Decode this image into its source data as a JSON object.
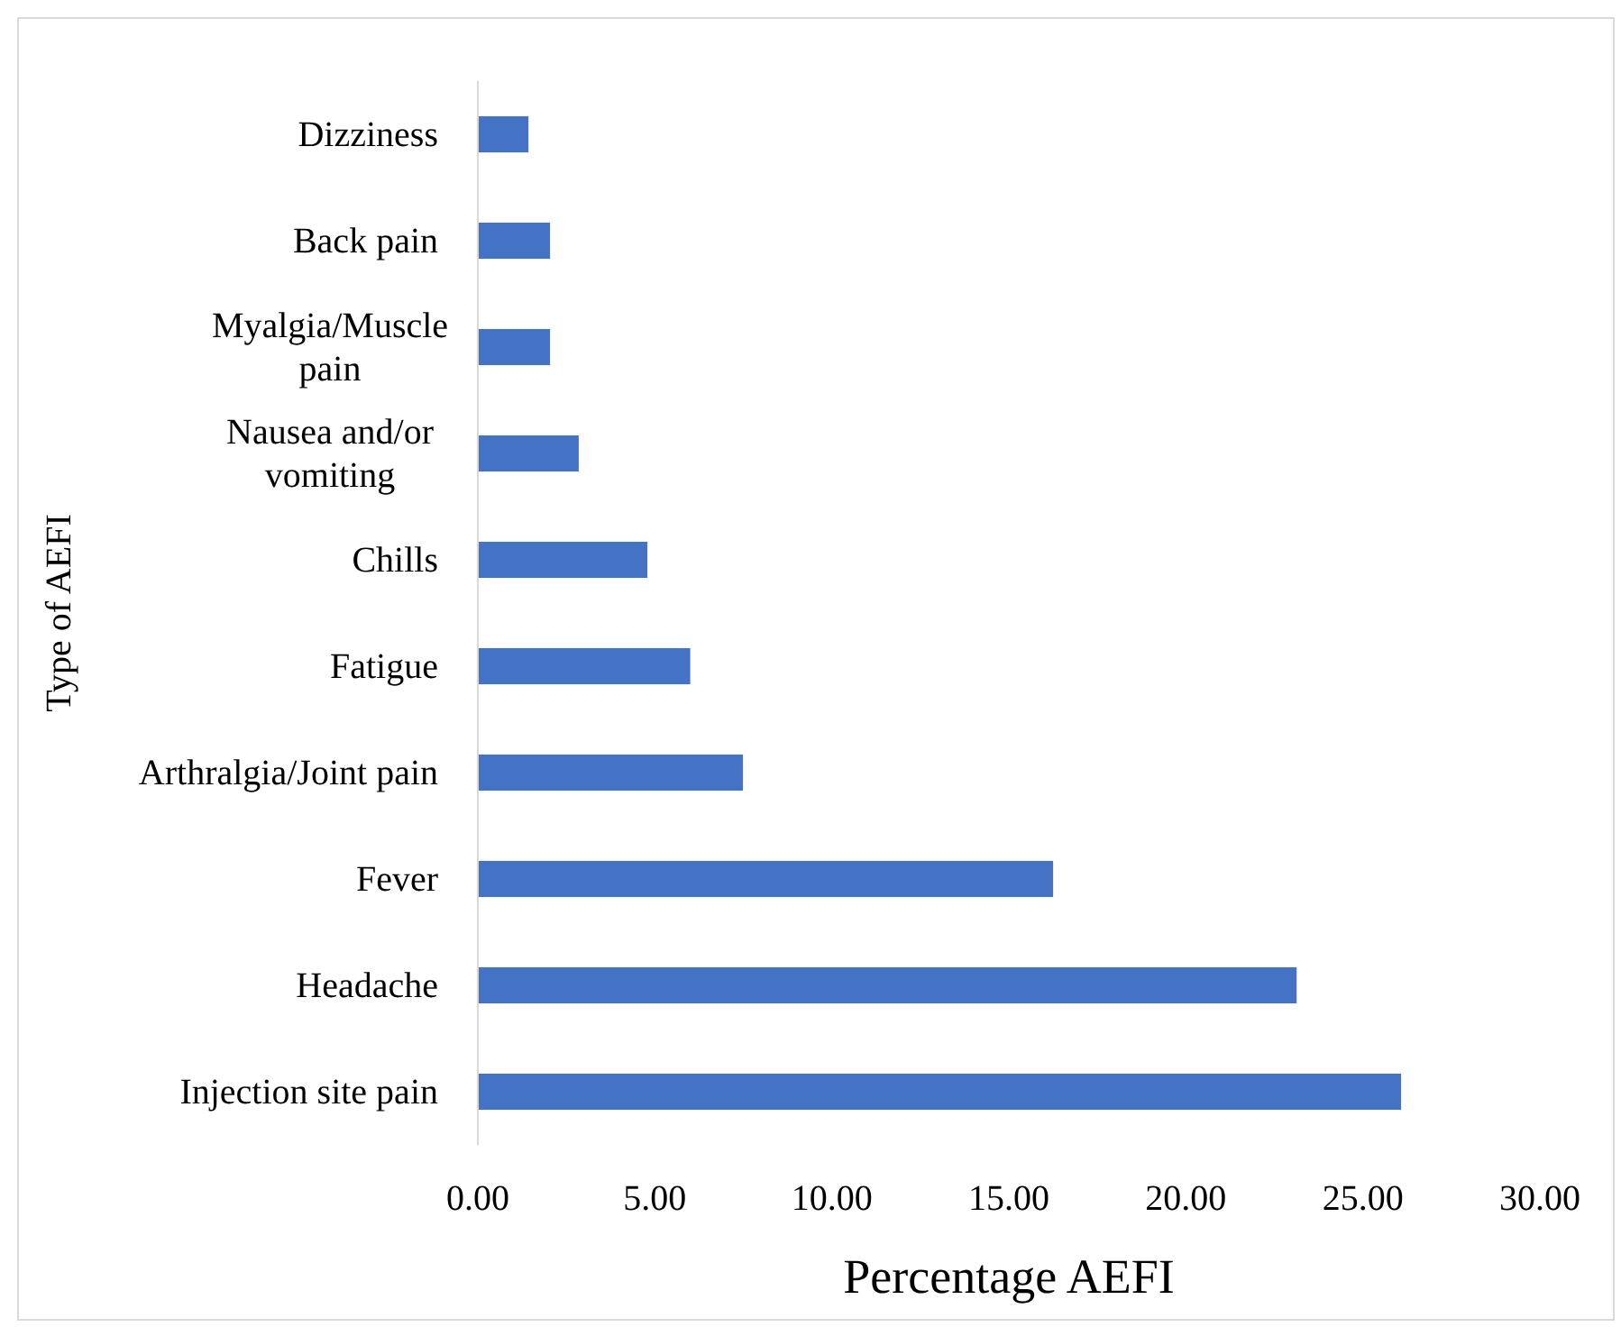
{
  "chart_data": {
    "type": "bar",
    "orientation": "horizontal",
    "xlabel": "Percentage AEFI",
    "ylabel": "Type of AEFI",
    "categories": [
      "Dizziness",
      "Back pain",
      "Myalgia/Muscle pain",
      "Nausea and/or vomiting",
      "Chills",
      "Fatigue",
      "Arthralgia/Joint pain",
      "Fever",
      "Headache",
      "Injection site pain"
    ],
    "values": [
      1.43,
      2.04,
      2.04,
      2.85,
      4.79,
      6.0,
      7.49,
      16.25,
      23.13,
      26.08
    ],
    "color": "#4472c4",
    "xlim": [
      0,
      30
    ],
    "xticks": [
      {
        "value": 0,
        "label": "0.00"
      },
      {
        "value": 5,
        "label": "5.00"
      },
      {
        "value": 10,
        "label": "10.00"
      },
      {
        "value": 15,
        "label": "15.00"
      },
      {
        "value": 20,
        "label": "20.00"
      },
      {
        "value": 25,
        "label": "25.00"
      },
      {
        "value": 30,
        "label": "30.00"
      }
    ],
    "grid": false
  }
}
